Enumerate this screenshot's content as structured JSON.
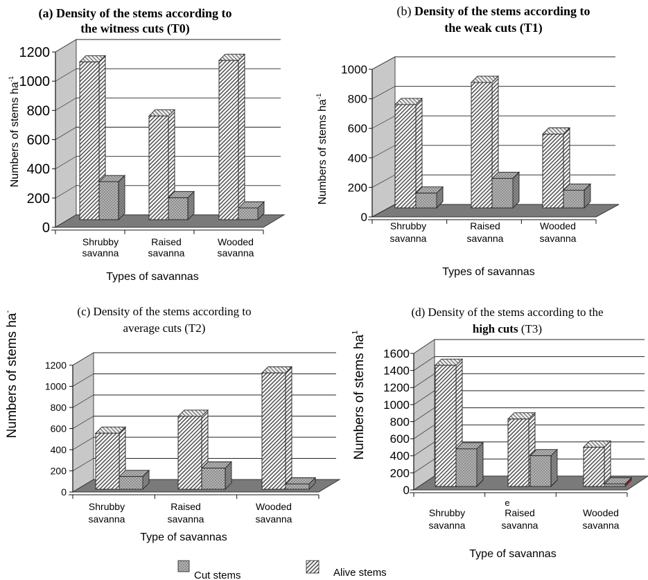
{
  "colors": {
    "wall": "#c8c8c8",
    "floor": "#7a7a7a",
    "alive_face": "#ffffff",
    "alive_hatch": "#555555",
    "cut_face": "#8c8c8c",
    "cut_dot": "#e6e6e6",
    "red_accent": "#b0202a"
  },
  "legend": {
    "cut_label": "Cut stems",
    "alive_label": "Alive stems"
  },
  "chart_data": [
    {
      "type": "bar",
      "title_lines": [
        {
          "bold": "(a) Density of the stems according to"
        },
        {
          "bold": "the witness cuts (T0)"
        }
      ],
      "ylabel": "Numbers of stems ha",
      "ylabel_sup": "-1",
      "xlabel": "Types of savannas",
      "categories": [
        [
          "Shrubby",
          "savanna"
        ],
        [
          "Raised",
          "savanna"
        ],
        [
          "Wooded",
          "savanna"
        ]
      ],
      "ylim": [
        0,
        1200
      ],
      "yticks": [
        0,
        200,
        400,
        600,
        800,
        1000,
        1200
      ],
      "series": [
        {
          "name": "Alive stems",
          "values": [
            1080,
            710,
            1090
          ]
        },
        {
          "name": "Cut stems",
          "values": [
            260,
            150,
            80
          ]
        }
      ]
    },
    {
      "type": "bar",
      "title_lines": [
        {
          "normal": "(b) ",
          "bold": "Density of the stems according to"
        },
        {
          "bold": "the weak cuts (T1)"
        }
      ],
      "ylabel": "Numbers of stems ha",
      "ylabel_sup": "-1",
      "xlabel": "Types of savannas",
      "categories": [
        [
          "Shrubby",
          "savanna"
        ],
        [
          "Raised",
          "savanna"
        ],
        [
          "Wooded",
          "savanna"
        ]
      ],
      "ylim": [
        0,
        1000
      ],
      "yticks": [
        0,
        200,
        400,
        600,
        800,
        1000
      ],
      "series": [
        {
          "name": "Alive stems",
          "values": [
            700,
            850,
            500
          ]
        },
        {
          "name": "Cut stems",
          "values": [
            100,
            200,
            120
          ]
        }
      ]
    },
    {
      "type": "bar",
      "title_lines": [
        {
          "normal": "(c) Density of the stems according to"
        },
        {
          "normal": "average cuts (T2)"
        }
      ],
      "ylabel": "Numbers of stems ha",
      "ylabel_sup": "-",
      "xlabel": "Type of savannas",
      "categories": [
        [
          "Shrubby",
          "savanna"
        ],
        [
          "Raised",
          "savanna"
        ],
        [
          "Wooded",
          "savanna"
        ]
      ],
      "ylim": [
        0,
        1200
      ],
      "yticks": [
        0,
        200,
        400,
        600,
        800,
        1000,
        1200
      ],
      "series": [
        {
          "name": "Alive stems",
          "values": [
            530,
            690,
            1100
          ]
        },
        {
          "name": "Cut stems",
          "values": [
            120,
            200,
            50
          ]
        }
      ]
    },
    {
      "type": "bar",
      "title_lines": [
        {
          "normal": "(d) Density of the stems according to the"
        },
        {
          "bold": "high cuts",
          "normal": " (T3)"
        }
      ],
      "ylabel": "Numbers of stems ha",
      "ylabel_sup": "1",
      "xlabel": "Type of savannas",
      "categories": [
        [
          "Shrubby",
          "savanna"
        ],
        [
          "Raised",
          "savanna"
        ],
        [
          "Wooded",
          "savanna"
        ]
      ],
      "category_extra": [
        "",
        "e",
        ""
      ],
      "ylim": [
        0,
        1600
      ],
      "yticks": [
        0,
        200,
        400,
        600,
        800,
        1000,
        1200,
        1400,
        1600
      ],
      "series": [
        {
          "name": "Alive stems",
          "values": [
            1420,
            790,
            460
          ]
        },
        {
          "name": "Cut stems",
          "values": [
            440,
            360,
            30
          ]
        }
      ]
    }
  ]
}
